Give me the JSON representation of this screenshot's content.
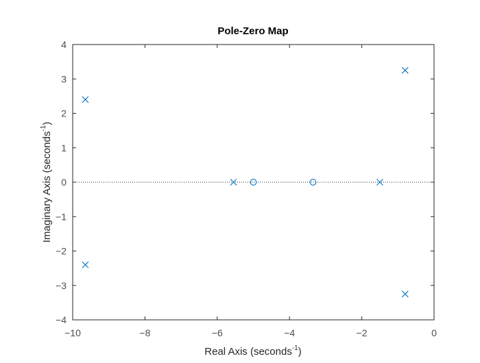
{
  "chart_data": {
    "type": "scatter",
    "title": "Pole-Zero Map",
    "xlabel": {
      "text": "Real Axis (seconds",
      "sup": "-1",
      "close": ")"
    },
    "ylabel": {
      "text": "Imaginary Axis (seconds",
      "sup": "-1",
      "close": ")"
    },
    "xlim": [
      -10,
      0
    ],
    "ylim": [
      -4,
      4
    ],
    "xticks": [
      -10,
      -8,
      -6,
      -4,
      -2,
      0
    ],
    "yticks": [
      -4,
      -3,
      -2,
      -1,
      0,
      1,
      2,
      3,
      4
    ],
    "xtick_labels": [
      "−10",
      "−8",
      "−6",
      "−4",
      "−2",
      "0"
    ],
    "ytick_labels": [
      "−4",
      "−3",
      "−2",
      "−1",
      "0",
      "1",
      "2",
      "3",
      "4"
    ],
    "zero_line": "dotted horizontal at imaginary 0",
    "grid": false,
    "series": [
      {
        "marker": "x",
        "color": "#0072BD",
        "points": [
          {
            "x": -9.65,
            "y": 2.4
          },
          {
            "x": -9.65,
            "y": -2.4
          },
          {
            "x": -5.55,
            "y": 0
          },
          {
            "x": -1.5,
            "y": 0
          },
          {
            "x": -0.8,
            "y": 3.25
          },
          {
            "x": -0.8,
            "y": -3.25
          }
        ]
      },
      {
        "marker": "o",
        "color": "#0072BD",
        "points": [
          {
            "x": -5.0,
            "y": 0
          },
          {
            "x": -3.35,
            "y": 0
          }
        ]
      }
    ]
  },
  "colors": {
    "axis": "#262626",
    "tick_label": "#4d4d4d",
    "marker": "#0072BD",
    "zero_line": "#262626"
  }
}
